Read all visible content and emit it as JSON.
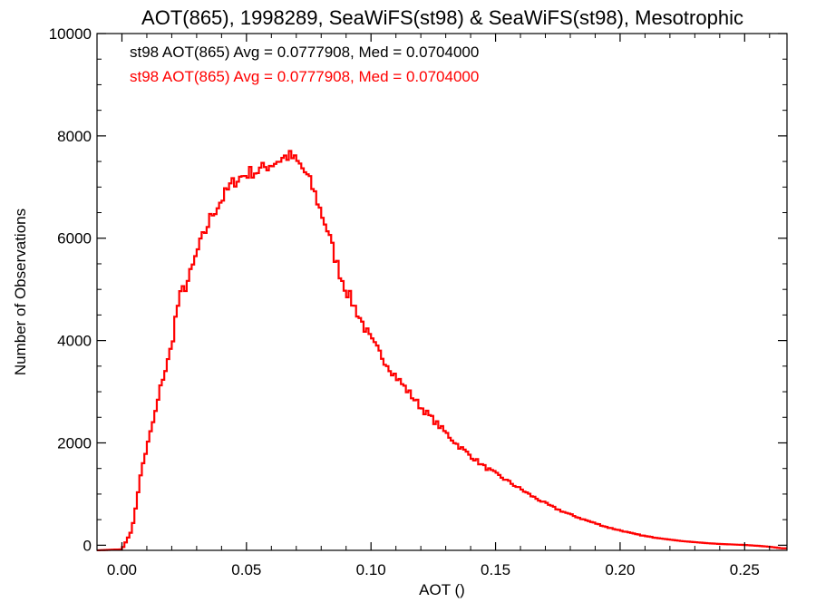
{
  "chart_data": {
    "type": "line",
    "style": "step-histogram",
    "title": "AOT(865), 1998289, SeaWiFS(st98) & SeaWiFS(st98), Mesotrophic",
    "xlabel": "AOT ()",
    "ylabel": "Number of Observations",
    "xlim": [
      -0.01,
      0.267
    ],
    "ylim": [
      -100,
      10000
    ],
    "xticks": [
      0.0,
      0.05,
      0.1,
      0.15,
      0.2,
      0.25
    ],
    "xtick_labels": [
      "0.00",
      "0.05",
      "0.10",
      "0.15",
      "0.20",
      "0.25"
    ],
    "yticks": [
      0,
      2000,
      4000,
      6000,
      8000,
      10000
    ],
    "ytick_labels": [
      "0",
      "2000",
      "4000",
      "6000",
      "8000",
      "10000"
    ],
    "grid": false,
    "legend_position": "top-left",
    "annotations": [
      {
        "text": "st98 AOT(865) Avg = 0.0777908, Med = 0.0704000",
        "color": "#000000"
      },
      {
        "text": "st98 AOT(865) Avg = 0.0777908, Med = 0.0704000",
        "color": "#ff0000"
      }
    ],
    "series": [
      {
        "color": "#ff0000",
        "bin_width": 0.001,
        "x": [
          -0.01,
          0.0,
          0.002,
          0.004,
          0.005,
          0.006,
          0.007,
          0.008,
          0.01,
          0.012,
          0.014,
          0.016,
          0.018,
          0.02,
          0.022,
          0.024,
          0.026,
          0.028,
          0.03,
          0.032,
          0.034,
          0.036,
          0.038,
          0.04,
          0.042,
          0.044,
          0.046,
          0.048,
          0.05,
          0.052,
          0.054,
          0.056,
          0.058,
          0.06,
          0.062,
          0.064,
          0.066,
          0.068,
          0.07,
          0.072,
          0.074,
          0.076,
          0.078,
          0.08,
          0.082,
          0.084,
          0.086,
          0.088,
          0.09,
          0.092,
          0.094,
          0.096,
          0.098,
          0.1,
          0.105,
          0.11,
          0.115,
          0.12,
          0.125,
          0.13,
          0.135,
          0.14,
          0.145,
          0.15,
          0.155,
          0.16,
          0.165,
          0.17,
          0.175,
          0.18,
          0.185,
          0.19,
          0.195,
          0.2,
          0.205,
          0.21,
          0.215,
          0.22,
          0.225,
          0.23,
          0.235,
          0.24,
          0.245,
          0.25,
          0.255,
          0.26,
          0.265
        ],
        "values": [
          -100,
          -80,
          100,
          300,
          550,
          900,
          1200,
          1500,
          1900,
          2300,
          2700,
          3200,
          3500,
          3900,
          4600,
          4950,
          5100,
          5350,
          5700,
          5950,
          6200,
          6450,
          6600,
          6750,
          6900,
          7050,
          7150,
          7200,
          7250,
          7300,
          7300,
          7350,
          7400,
          7450,
          7500,
          7550,
          7600,
          7600,
          7500,
          7400,
          7250,
          7050,
          6800,
          6500,
          6250,
          5900,
          5550,
          5250,
          5000,
          4800,
          4600,
          4400,
          4200,
          4000,
          3650,
          3300,
          3000,
          2700,
          2450,
          2200,
          1950,
          1750,
          1550,
          1400,
          1250,
          1100,
          950,
          820,
          700,
          600,
          510,
          430,
          350,
          290,
          230,
          180,
          140,
          110,
          80,
          60,
          40,
          25,
          15,
          5,
          -10,
          -30,
          -60
        ]
      }
    ]
  }
}
